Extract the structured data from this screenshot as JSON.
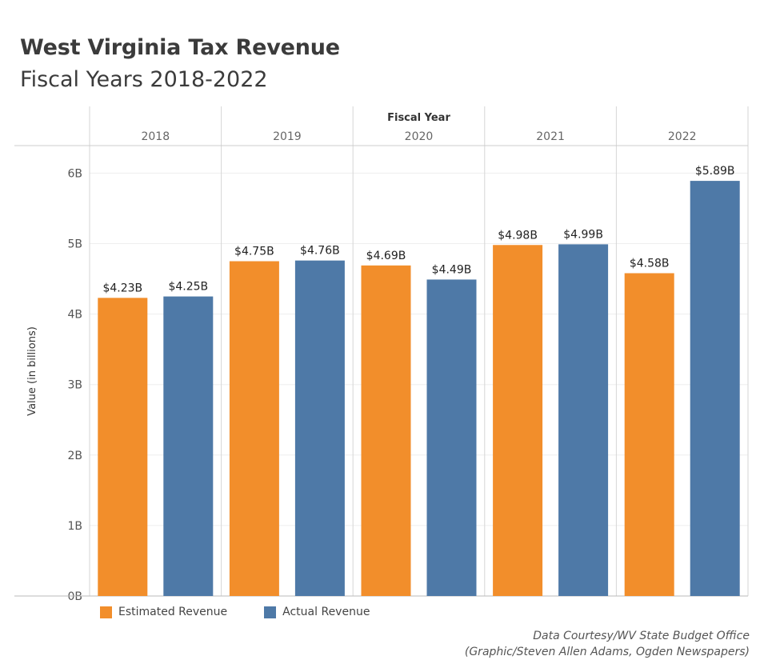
{
  "header": {
    "title": "West Virginia Tax Revenue",
    "subtitle": "Fiscal Years 2018-2022"
  },
  "legend": {
    "items": [
      {
        "label": "Estimated Revenue",
        "color": "#f28e2b"
      },
      {
        "label": "Actual Revenue",
        "color": "#4e79a7"
      }
    ]
  },
  "credits": {
    "line1": "Data Courtesy/WV State Budget Office",
    "line2": "(Graphic/Steven Allen Adams, Ogden Newspapers)"
  },
  "chart_data": {
    "type": "bar",
    "column_header": "Fiscal Year",
    "categories": [
      "2018",
      "2019",
      "2020",
      "2021",
      "2022"
    ],
    "series": [
      {
        "name": "Estimated Revenue",
        "color": "#f28e2b",
        "values": [
          4.23,
          4.75,
          4.69,
          4.98,
          4.58
        ],
        "labels": [
          "$4.23B",
          "$4.75B",
          "$4.69B",
          "$4.98B",
          "$4.58B"
        ]
      },
      {
        "name": "Actual Revenue",
        "color": "#4e79a7",
        "values": [
          4.25,
          4.76,
          4.49,
          4.99,
          5.89
        ],
        "labels": [
          "$4.25B",
          "$4.76B",
          "$4.49B",
          "$4.99B",
          "$5.89B"
        ]
      }
    ],
    "ylabel": "Value (in billions)",
    "ylim": [
      0,
      6.3
    ],
    "yticks": [
      0,
      1,
      2,
      3,
      4,
      5,
      6
    ],
    "ytick_labels": [
      "0B",
      "1B",
      "2B",
      "3B",
      "4B",
      "5B",
      "6B"
    ],
    "grid": true,
    "legend_position": "bottom-left"
  }
}
